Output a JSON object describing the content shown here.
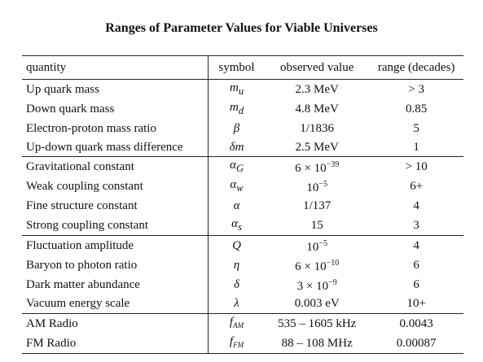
{
  "title": "Ranges of Parameter Values for Viable Universes",
  "columns": {
    "quantity": "quantity",
    "symbol": "symbol",
    "observed": "observed value",
    "range": "range (decades)"
  },
  "rows": [
    {
      "quantity": "Up quark mass",
      "sym_base": "m",
      "sym_sub": "u",
      "val_base": "2.3 MeV",
      "val_sup": "",
      "range": "> 3"
    },
    {
      "quantity": "Down quark mass",
      "sym_base": "m",
      "sym_sub": "d",
      "val_base": "4.8 MeV",
      "val_sup": "",
      "range": "0.85"
    },
    {
      "quantity": "Electron-proton mass ratio",
      "sym_base": "β",
      "sym_sub": "",
      "val_base": "1/1836",
      "val_sup": "",
      "range": "5"
    },
    {
      "quantity": "Up-down quark mass difference",
      "sym_base": "δm",
      "sym_sub": "",
      "val_base": "2.5 MeV",
      "val_sup": "",
      "range": "1"
    },
    {
      "quantity": "Gravitational constant",
      "sym_base": "α",
      "sym_sub": "G",
      "val_base": "6 × 10",
      "val_sup": "−39",
      "range": "> 10"
    },
    {
      "quantity": "Weak coupling constant",
      "sym_base": "α",
      "sym_sub": "w",
      "val_base": "10",
      "val_sup": "−5",
      "range": "6+"
    },
    {
      "quantity": "Fine structure constant",
      "sym_base": "α",
      "sym_sub": "",
      "val_base": "1/137",
      "val_sup": "",
      "range": "4"
    },
    {
      "quantity": "Strong coupling constant",
      "sym_base": "α",
      "sym_sub": "s",
      "val_base": "15",
      "val_sup": "",
      "range": "3"
    },
    {
      "quantity": "Fluctuation amplitude",
      "sym_base": "Q",
      "sym_sub": "",
      "val_base": "10",
      "val_sup": "−5",
      "range": "4"
    },
    {
      "quantity": "Baryon to photon ratio",
      "sym_base": "η",
      "sym_sub": "",
      "val_base": "6 × 10",
      "val_sup": "−10",
      "range": "6"
    },
    {
      "quantity": "Dark matter abundance",
      "sym_base": "δ",
      "sym_sub": "",
      "val_base": "3 × 10",
      "val_sup": "−9",
      "range": "6"
    },
    {
      "quantity": "Vacuum energy scale",
      "sym_base": "λ",
      "sym_sub": "",
      "val_base": "0.003 eV",
      "val_sup": "",
      "range": "10+"
    },
    {
      "quantity": "AM Radio",
      "sym_base": "f",
      "sym_sub": "AM",
      "val_base": "535 – 1605 kHz",
      "val_sup": "",
      "range": "0.0043"
    },
    {
      "quantity": "FM Radio",
      "sym_base": "f",
      "sym_sub": "FM",
      "val_base": "88 – 108 MHz",
      "val_sup": "",
      "range": "0.00087"
    }
  ]
}
